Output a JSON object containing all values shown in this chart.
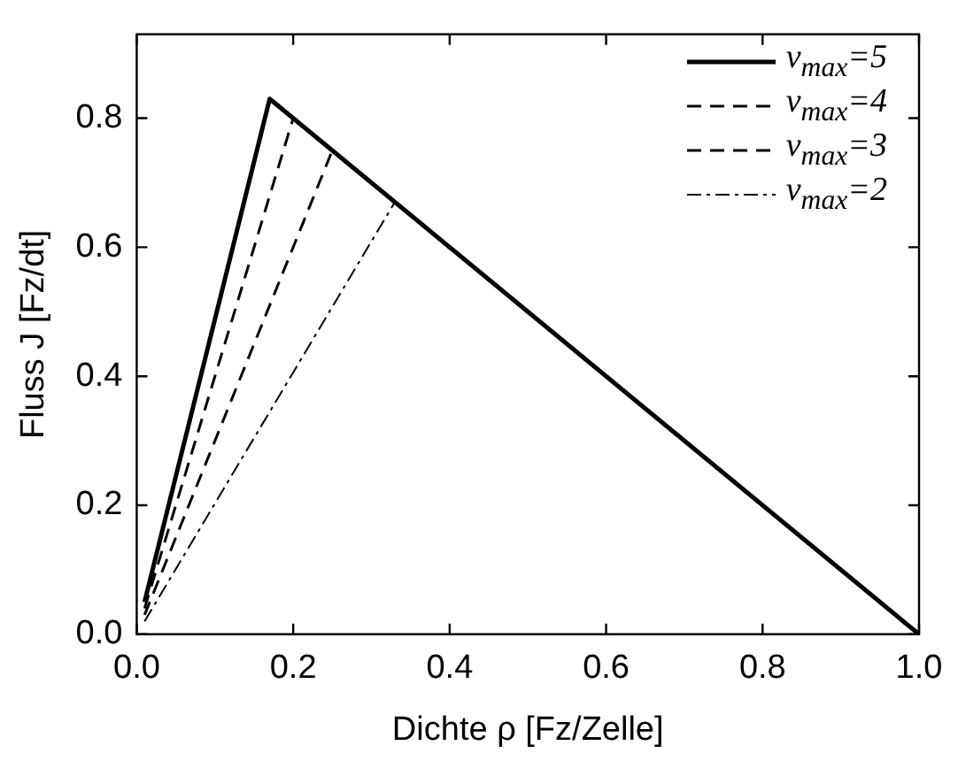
{
  "chart_data": {
    "type": "line",
    "xlabel": "Dichte ρ [Fz/Zelle]",
    "ylabel": "Fluss J [Fz/dt]",
    "xlim": [
      0,
      1
    ],
    "xticks": [
      {
        "value": 0,
        "label": "0.0"
      },
      0.2,
      0.4,
      0.6,
      0.8,
      {
        "value": 1,
        "label": "1.0"
      }
    ],
    "ylim": [
      0,
      0.93
    ],
    "yticks": [
      {
        "value": 0,
        "label": "0.0"
      },
      0.2,
      0.4,
      0.6,
      0.8
    ],
    "grid": false,
    "legend": "top right",
    "marker": "none",
    "series": [
      {
        "name": "v$_{max}$=5",
        "color": "#000000",
        "line_style": "solid",
        "x": [
          0.01,
          0.17,
          1
        ],
        "values": [
          0.05,
          0.83,
          0
        ]
      },
      {
        "name": "v$_{max}$=4",
        "color": "#000000",
        "line_style": "dashed",
        "x": [
          0.01,
          0.2,
          1
        ],
        "values": [
          0.04,
          0.8,
          0
        ]
      },
      {
        "name": "v$_{max}$=3",
        "color": "#000000",
        "line_style": "dashed",
        "x": [
          0.01,
          0.25,
          1
        ],
        "values": [
          0.03,
          0.75,
          0
        ]
      },
      {
        "name": "v$_{max}$=2",
        "color": "#000000",
        "line_style": "dashdot",
        "x": [
          0.01,
          0.33,
          1
        ],
        "values": [
          0.02,
          0.67,
          0
        ]
      }
    ]
  }
}
